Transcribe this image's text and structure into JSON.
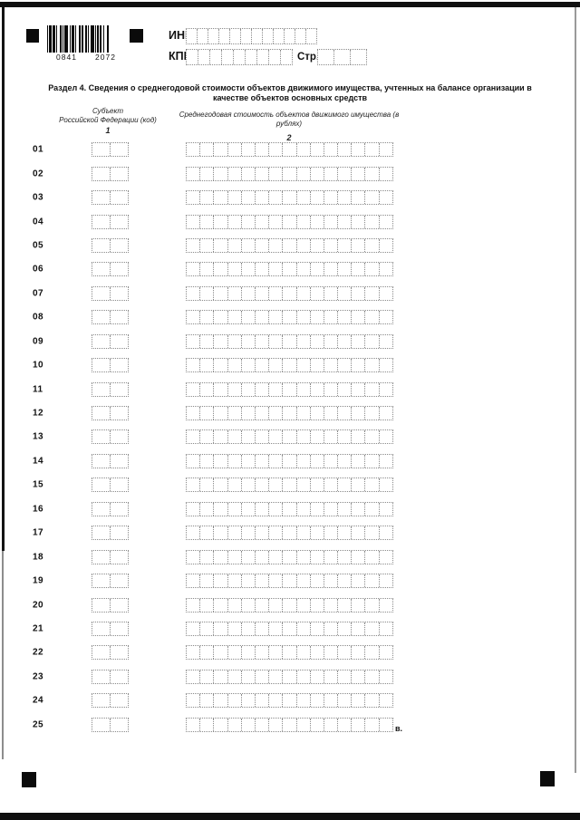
{
  "barcode": {
    "left_digits": "0841",
    "right_digits": "2072"
  },
  "header_fields": {
    "inn": {
      "label": "ИНН",
      "cells": 12,
      "value": ""
    },
    "kpp": {
      "label": "КПП",
      "cells": 9,
      "value": ""
    },
    "page": {
      "label": "Стр.",
      "cells": 3,
      "value": ""
    }
  },
  "title": {
    "line1": "Раздел 4. Сведения о среднегодовой стоимости объектов движимого имущества, учтенных на балансе организации в",
    "line2": "качестве объектов основных средств"
  },
  "table": {
    "col1": {
      "line1": "Субъект",
      "line2": "Российской Федерации (код)",
      "num": "1"
    },
    "col2": {
      "line1": "Среднегодовая стоимость объектов движимого имущества (в рублях)",
      "num": "2"
    },
    "small_cells": 2,
    "large_cells": 15,
    "rows": [
      "01",
      "02",
      "03",
      "04",
      "05",
      "06",
      "07",
      "08",
      "09",
      "10",
      "11",
      "12",
      "13",
      "14",
      "15",
      "16",
      "17",
      "18",
      "19",
      "20",
      "21",
      "22",
      "23",
      "24",
      "25"
    ]
  },
  "footnote_mark": "в.",
  "colors": {
    "ink": "#111111",
    "dotted_border": "#8a8a8a",
    "paper": "#ffffff"
  }
}
